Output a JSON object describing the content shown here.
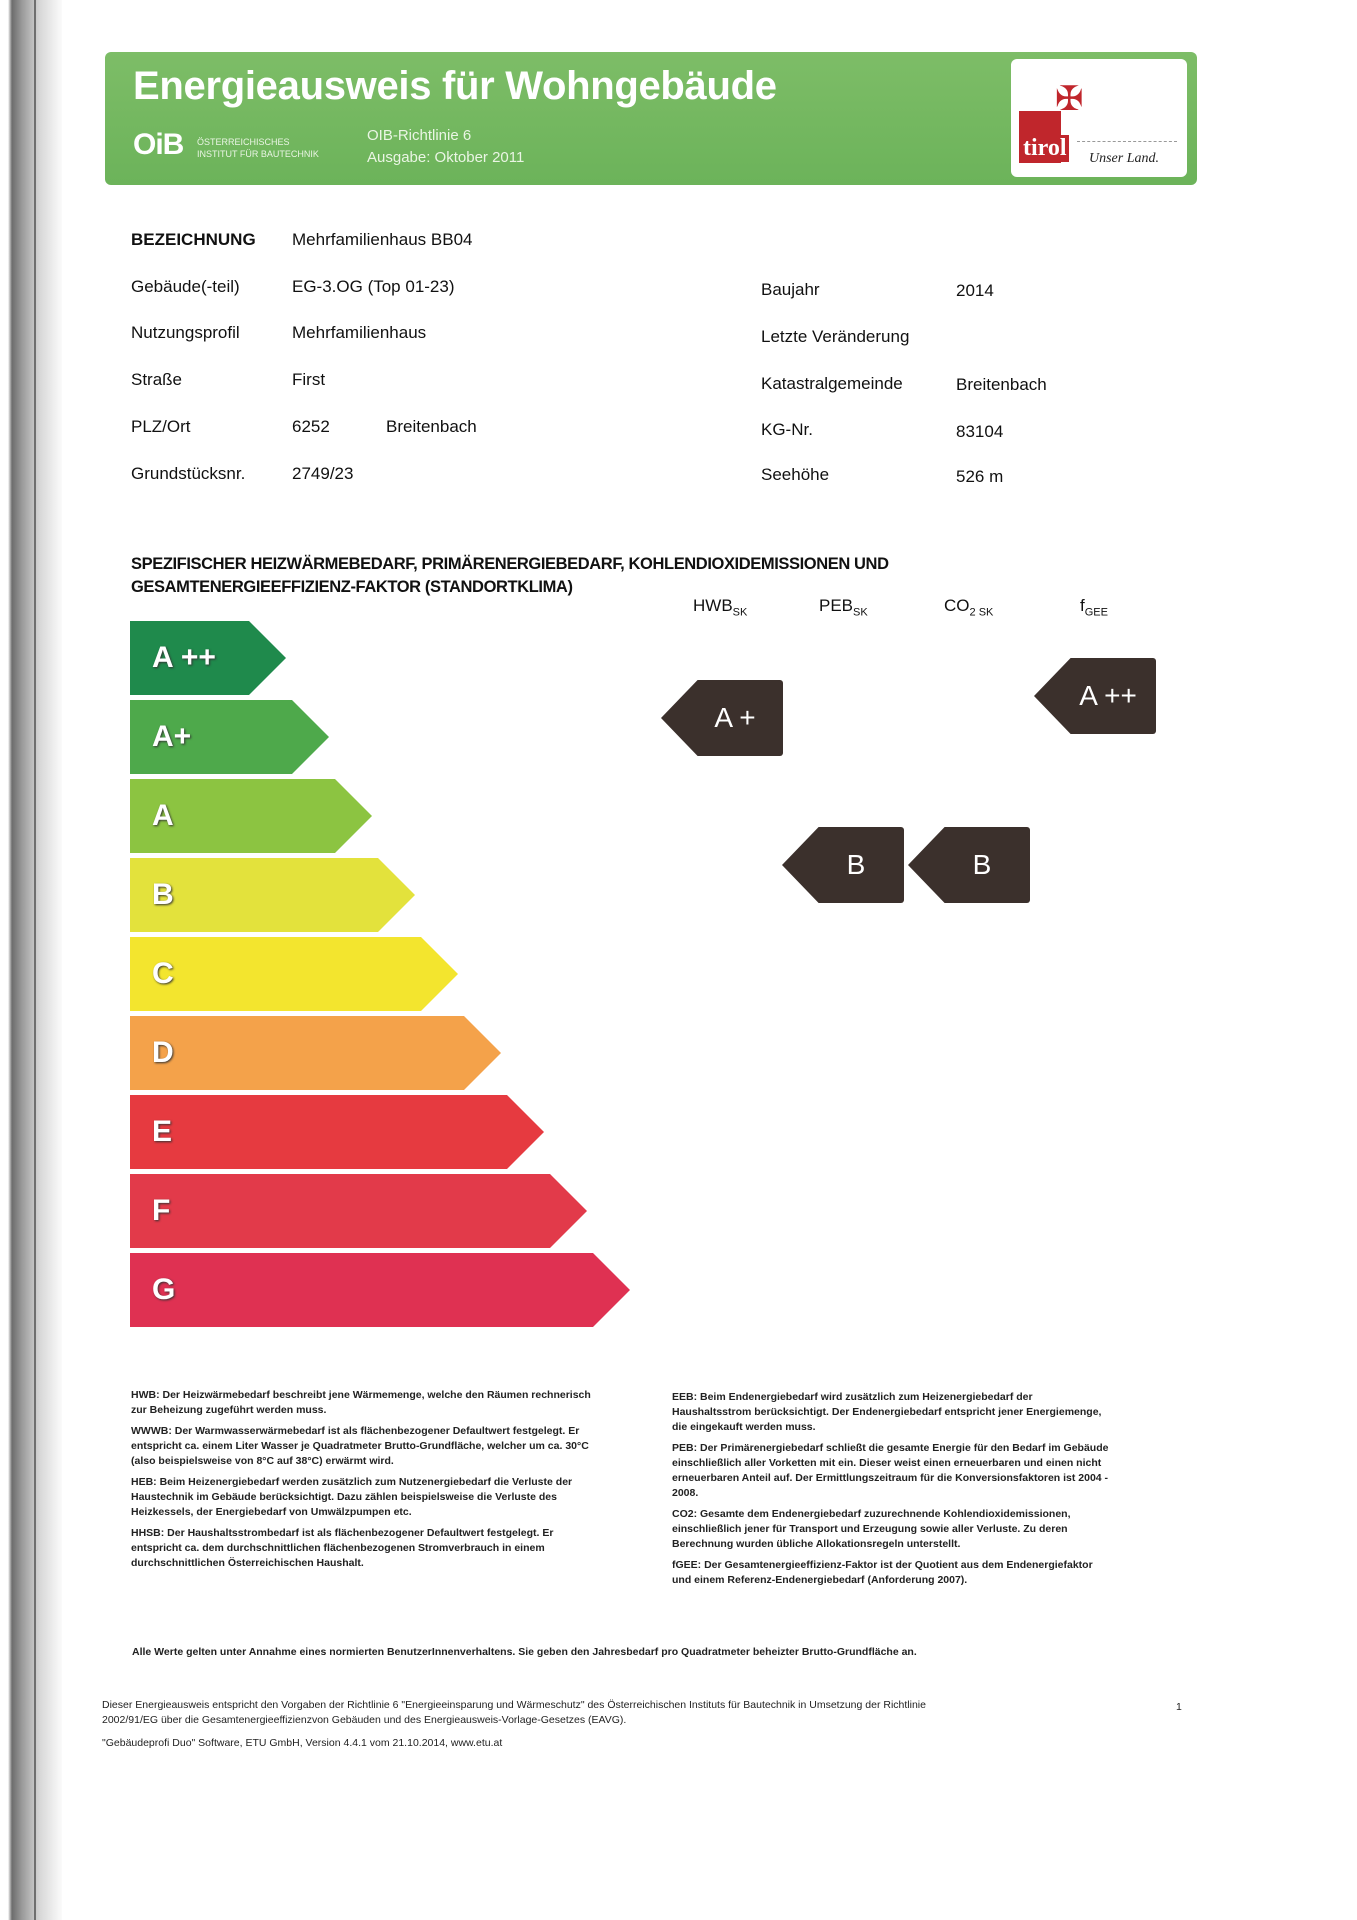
{
  "header": {
    "title": "Energieausweis für Wohngebäude",
    "oib_logo": "OiB",
    "oib_name_1": "ÖSTERREICHISCHES",
    "oib_name_2": "INSTITUT FÜR BAUTECHNIK",
    "richtlinie": "OIB-Richtlinie 6",
    "ausgabe": "Ausgabe: Oktober 2011",
    "tirol_logo": "tirol",
    "tirol_slogan": "Unser Land."
  },
  "info": {
    "left": [
      {
        "label": "BEZEICHNUNG",
        "value": "Mehrfamilienhaus BB04"
      },
      {
        "label": "Gebäude(-teil)",
        "value": "EG-3.OG (Top 01-23)"
      },
      {
        "label": "Nutzungsprofil",
        "value": "Mehrfamilienhaus"
      },
      {
        "label": "Straße",
        "value": "First"
      },
      {
        "label": "PLZ/Ort",
        "value": "6252",
        "value2": "Breitenbach"
      },
      {
        "label": "Grundstücksnr.",
        "value": "2749/23"
      }
    ],
    "right": [
      {
        "label": "Baujahr",
        "value": "2014"
      },
      {
        "label": "Letzte Veränderung",
        "value": ""
      },
      {
        "label": "Katastralgemeinde",
        "value": "Breitenbach"
      },
      {
        "label": "KG-Nr.",
        "value": "83104"
      },
      {
        "label": "Seehöhe",
        "value": "526 m"
      }
    ]
  },
  "rating": {
    "heading": "SPEZIFISCHER HEIZWÄRMEBEDARF, PRIMÄRENERGIEBEDARF, KOHLENDIOXIDEMISSIONEN UND GESAMTENERGIEEFFIZIENZ-FAKTOR (STANDORTKLIMA)",
    "columns": [
      {
        "main": "HWB",
        "sub": "SK"
      },
      {
        "main": "PEB",
        "sub": "SK"
      },
      {
        "main": "CO",
        "mid": "2",
        "sub": "SK"
      },
      {
        "main": "f",
        "sub": "GEE"
      }
    ],
    "classes": [
      {
        "label": "A ++",
        "color": "#1f8a4c"
      },
      {
        "label": "A+",
        "color": "#4ea94b"
      },
      {
        "label": "A",
        "color": "#8cc441"
      },
      {
        "label": "B",
        "color": "#e3e23c"
      },
      {
        "label": "C",
        "color": "#f3e52e"
      },
      {
        "label": "D",
        "color": "#f4a24a"
      },
      {
        "label": "E",
        "color": "#e63a40"
      },
      {
        "label": "F",
        "color": "#e23a4a"
      },
      {
        "label": "G",
        "color": "#df3152"
      }
    ],
    "results": {
      "HWB_SK": "A +",
      "PEB_SK": "B",
      "CO2_SK": "B",
      "fGEE": "A ++"
    },
    "indicator_color": "#3b302c"
  },
  "notes": {
    "left": [
      {
        "term": "HWB:",
        "text": " Der Heizwärmebedarf beschreibt jene Wärmemenge, welche den Räumen rechnerisch zur Beheizung zugeführt werden muss."
      },
      {
        "term": "WWWB:",
        "text": " Der Warmwasserwärmebedarf ist als flächenbezogener Defaultwert festgelegt. Er entspricht ca. einem Liter Wasser je Quadratmeter Brutto-Grundfläche, welcher um ca. 30°C (also beispielsweise von 8°C auf 38°C) erwärmt wird."
      },
      {
        "term": "HEB:",
        "text": " Beim Heizenergiebedarf werden zusätzlich zum Nutzenergiebedarf die Verluste der Haustechnik im Gebäude berücksichtigt. Dazu zählen beispielsweise die Verluste des Heizkessels, der Energiebedarf von Umwälzpumpen etc."
      },
      {
        "term": "HHSB:",
        "text": " Der Haushaltsstrombedarf ist als flächenbezogener Defaultwert festgelegt. Er entspricht ca. dem durchschnittlichen flächenbezogenen Stromverbrauch in einem durchschnittlichen Österreichischen Haushalt."
      }
    ],
    "right": [
      {
        "term": "EEB:",
        "text": " Beim Endenergiebedarf wird zusätzlich zum Heizenergiebedarf der Haushaltsstrom berücksichtigt. Der Endenergiebedarf entspricht jener Energiemenge, die eingekauft werden muss."
      },
      {
        "term": "PEB:",
        "text": " Der Primärenergiebedarf schließt die gesamte Energie für den Bedarf im Gebäude einschließlich aller Vorketten mit ein. Dieser weist einen erneuerbaren und einen nicht erneuerbaren Anteil auf. Der Ermittlungszeitraum für die Konversionsfaktoren ist 2004 - 2008."
      },
      {
        "term": "CO2:",
        "text": " Gesamte dem Endenergiebedarf zuzurechnende Kohlendioxidemissionen, einschließlich jener für Transport und Erzeugung sowie aller Verluste. Zu deren Berechnung wurden übliche Allokationsregeln unterstellt."
      },
      {
        "term": "fGEE:",
        "text": " Der Gesamtenergieeffizienz-Faktor ist der Quotient aus dem Endenergiefaktor und einem Referenz-Endenergiebedarf (Anforderung 2007)."
      }
    ]
  },
  "assumption": "Alle Werte gelten unter Annahme eines normierten BenutzerInnenverhaltens. Sie geben den Jahresbedarf pro Quadratmeter beheizter Brutto-Grundfläche an.",
  "footer": {
    "line1": "Dieser Energieausweis entspricht den Vorgaben der Richtlinie 6 \"Energieeinsparung und Wärmeschutz\" des Österreichischen Instituts für Bautechnik in Umsetzung der Richtlinie",
    "line2": "2002/91/EG über die Gesamtenergieeffizienzvon Gebäuden und des Energieausweis-Vorlage-Gesetzes (EAVG).",
    "software": "\"Gebäudeprofi Duo\" Software, ETU GmbH, Version 4.4.1 vom 21.10.2014, www.etu.at",
    "page": "1"
  }
}
